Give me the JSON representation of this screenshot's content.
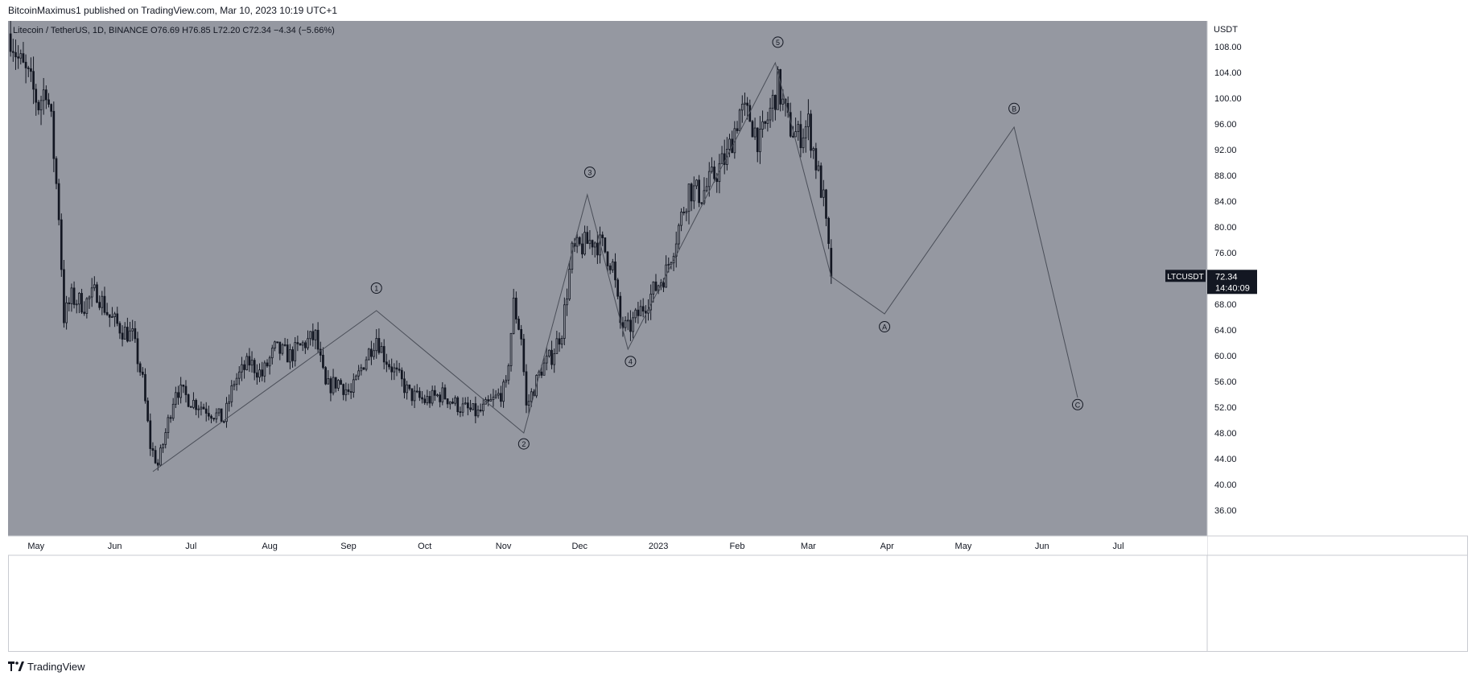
{
  "publish_line": "BitcoinMaximus1 published on TradingView.com, Mar 10, 2023 10:19 UTC+1",
  "footer": {
    "brand": "TradingView",
    "logo_icon": "tradingview-logo-icon"
  },
  "colors": {
    "plot_background": "#9598a1",
    "candle": "#131722",
    "wave_line": "#4a4e58",
    "label_bg": "#131722",
    "label_text": "#ffffff"
  },
  "chart_data": {
    "type": "candlestick",
    "symbol_line": {
      "name": "Litecoin / TetherUS, 1D, BINANCE",
      "open_label": "O",
      "open": "76.69",
      "high_label": "H",
      "high": "76.85",
      "low_label": "L",
      "low": "72.20",
      "close_label": "C",
      "close": "72.34",
      "change": "−4.34 (−5.66%)"
    },
    "currency": "USDT",
    "ylim": [
      32,
      112
    ],
    "y_ticks": [
      "36.00",
      "40.00",
      "44.00",
      "48.00",
      "52.00",
      "56.00",
      "60.00",
      "64.00",
      "68.00",
      "72.00",
      "76.00",
      "80.00",
      "84.00",
      "88.00",
      "92.00",
      "96.00",
      "100.00",
      "104.00",
      "108.00"
    ],
    "x_range": [
      "2022-04-20",
      "2023-08-05"
    ],
    "x_ticks": [
      {
        "date": "2022-05-01",
        "label": "May"
      },
      {
        "date": "2022-06-01",
        "label": "Jun"
      },
      {
        "date": "2022-07-01",
        "label": "Jul"
      },
      {
        "date": "2022-08-01",
        "label": "Aug"
      },
      {
        "date": "2022-09-01",
        "label": "Sep"
      },
      {
        "date": "2022-10-01",
        "label": "Oct"
      },
      {
        "date": "2022-11-01",
        "label": "Nov"
      },
      {
        "date": "2022-12-01",
        "label": "Dec"
      },
      {
        "date": "2023-01-01",
        "label": "2023"
      },
      {
        "date": "2023-02-01",
        "label": "Feb"
      },
      {
        "date": "2023-03-01",
        "label": "Mar"
      },
      {
        "date": "2023-04-01",
        "label": "Apr"
      },
      {
        "date": "2023-05-01",
        "label": "May"
      },
      {
        "date": "2023-06-01",
        "label": "Jun"
      },
      {
        "date": "2023-07-01",
        "label": "Jul"
      }
    ],
    "price_path": [
      [
        "2022-04-21",
        110
      ],
      [
        "2022-04-24",
        106
      ],
      [
        "2022-04-28",
        103
      ],
      [
        "2022-05-02",
        99
      ],
      [
        "2022-05-05",
        102
      ],
      [
        "2022-05-07",
        96
      ],
      [
        "2022-05-10",
        82
      ],
      [
        "2022-05-12",
        66
      ],
      [
        "2022-05-15",
        69
      ],
      [
        "2022-05-20",
        68
      ],
      [
        "2022-05-25",
        70
      ],
      [
        "2022-05-30",
        66
      ],
      [
        "2022-06-04",
        64
      ],
      [
        "2022-06-08",
        63
      ],
      [
        "2022-06-12",
        56
      ],
      [
        "2022-06-15",
        46
      ],
      [
        "2022-06-18",
        43
      ],
      [
        "2022-06-21",
        48
      ],
      [
        "2022-06-25",
        55
      ],
      [
        "2022-07-01",
        53
      ],
      [
        "2022-07-06",
        52
      ],
      [
        "2022-07-10",
        51
      ],
      [
        "2022-07-14",
        50
      ],
      [
        "2022-07-18",
        56
      ],
      [
        "2022-07-24",
        59
      ],
      [
        "2022-07-29",
        57
      ],
      [
        "2022-08-03",
        61
      ],
      [
        "2022-08-09",
        60
      ],
      [
        "2022-08-15",
        62
      ],
      [
        "2022-08-19",
        63
      ],
      [
        "2022-08-23",
        55
      ],
      [
        "2022-08-28",
        56
      ],
      [
        "2022-09-02",
        54
      ],
      [
        "2022-09-07",
        59
      ],
      [
        "2022-09-12",
        63
      ],
      [
        "2022-09-15",
        60
      ],
      [
        "2022-09-20",
        57
      ],
      [
        "2022-09-25",
        54
      ],
      [
        "2022-10-01",
        53
      ],
      [
        "2022-10-08",
        54
      ],
      [
        "2022-10-15",
        52
      ],
      [
        "2022-10-22",
        51
      ],
      [
        "2022-10-28",
        53
      ],
      [
        "2022-11-02",
        55
      ],
      [
        "2022-11-05",
        68
      ],
      [
        "2022-11-08",
        63
      ],
      [
        "2022-11-10",
        52
      ],
      [
        "2022-11-12",
        54
      ],
      [
        "2022-11-16",
        58
      ],
      [
        "2022-11-20",
        60
      ],
      [
        "2022-11-24",
        64
      ],
      [
        "2022-11-28",
        76
      ],
      [
        "2022-12-02",
        77
      ],
      [
        "2022-12-06",
        78
      ],
      [
        "2022-12-10",
        77
      ],
      [
        "2022-12-14",
        74
      ],
      [
        "2022-12-17",
        65
      ],
      [
        "2022-12-20",
        64
      ],
      [
        "2022-12-25",
        67
      ],
      [
        "2022-12-30",
        70
      ],
      [
        "2023-01-04",
        73
      ],
      [
        "2023-01-09",
        80
      ],
      [
        "2023-01-13",
        86
      ],
      [
        "2023-01-18",
        85
      ],
      [
        "2023-01-23",
        88
      ],
      [
        "2023-01-28",
        91
      ],
      [
        "2023-02-02",
        98
      ],
      [
        "2023-02-06",
        97
      ],
      [
        "2023-02-10",
        93
      ],
      [
        "2023-02-14",
        98
      ],
      [
        "2023-02-17",
        102
      ],
      [
        "2023-02-21",
        96
      ],
      [
        "2023-02-25",
        94
      ],
      [
        "2023-03-01",
        96
      ],
      [
        "2023-03-04",
        90
      ],
      [
        "2023-03-07",
        84
      ],
      [
        "2023-03-09",
        76
      ],
      [
        "2023-03-10",
        72.34
      ]
    ],
    "wave_lines": [
      {
        "date": "2022-06-16",
        "value": 42
      },
      {
        "date": "2022-09-12",
        "value": 67
      },
      {
        "date": "2022-11-09",
        "value": 48
      },
      {
        "date": "2022-12-04",
        "value": 85
      },
      {
        "date": "2022-12-20",
        "value": 61
      },
      {
        "date": "2023-02-16",
        "value": 105.5
      },
      {
        "date": "2023-03-10",
        "value": 72.3
      },
      {
        "date": "2023-03-31",
        "value": 66.5
      },
      {
        "date": "2023-05-21",
        "value": 95.5
      },
      {
        "date": "2023-06-15",
        "value": 53.5
      }
    ],
    "wave_labels": [
      {
        "label": "1",
        "date": "2022-09-12",
        "value": 70.5
      },
      {
        "label": "2",
        "date": "2022-11-09",
        "value": 46.3
      },
      {
        "label": "3",
        "date": "2022-12-05",
        "value": 88.5
      },
      {
        "label": "4",
        "date": "2022-12-21",
        "value": 59.1
      },
      {
        "label": "5",
        "date": "2023-02-17",
        "value": 108.7
      },
      {
        "label": "A",
        "date": "2023-03-31",
        "value": 64.5
      },
      {
        "label": "B",
        "date": "2023-05-21",
        "value": 98.4
      },
      {
        "label": "C",
        "date": "2023-06-15",
        "value": 52.4
      }
    ],
    "last_price_tag": {
      "ticker": "LTCUSDT",
      "price": "72.34",
      "countdown": "14:40:09"
    }
  }
}
